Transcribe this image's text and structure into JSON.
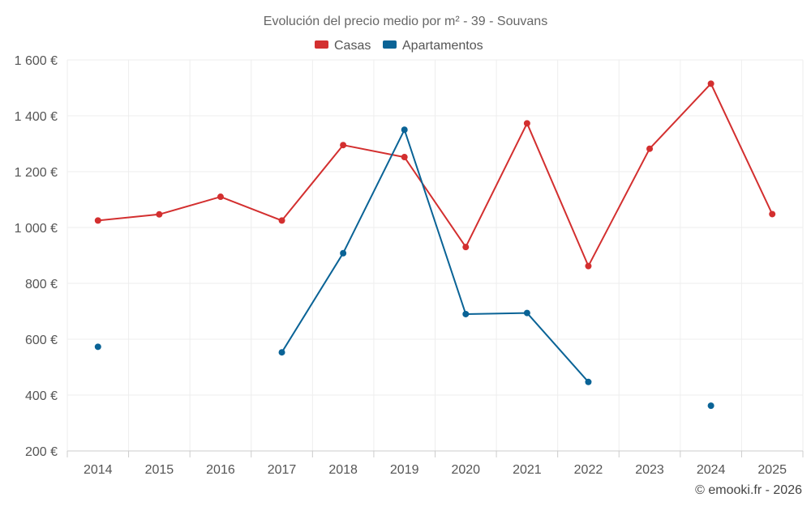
{
  "chart_data": {
    "type": "line",
    "title": "Evolución del precio medio por m² - 39 - Souvans",
    "categories": [
      "2014",
      "2015",
      "2016",
      "2017",
      "2018",
      "2019",
      "2020",
      "2021",
      "2022",
      "2023",
      "2024",
      "2025"
    ],
    "ylim": [
      200,
      1600
    ],
    "yticks": [
      200,
      400,
      600,
      800,
      1000,
      1200,
      1400,
      1600
    ],
    "ytick_labels": [
      "200 €",
      "400 €",
      "600 €",
      "800 €",
      "1 000 €",
      "1 200 €",
      "1 400 €",
      "1 600 €"
    ],
    "grid": true,
    "legend_position": "top-center",
    "series": [
      {
        "name": "Casas",
        "color": "#d32f2f",
        "values": [
          1025,
          1047,
          1110,
          1025,
          1295,
          1252,
          930,
          1373,
          862,
          1282,
          1515,
          1048
        ]
      },
      {
        "name": "Apartamentos",
        "color": "#0a6396",
        "values": [
          573,
          null,
          null,
          553,
          908,
          1350,
          690,
          694,
          447,
          null,
          362,
          null
        ]
      }
    ],
    "credit": "© emooki.fr - 2026"
  }
}
